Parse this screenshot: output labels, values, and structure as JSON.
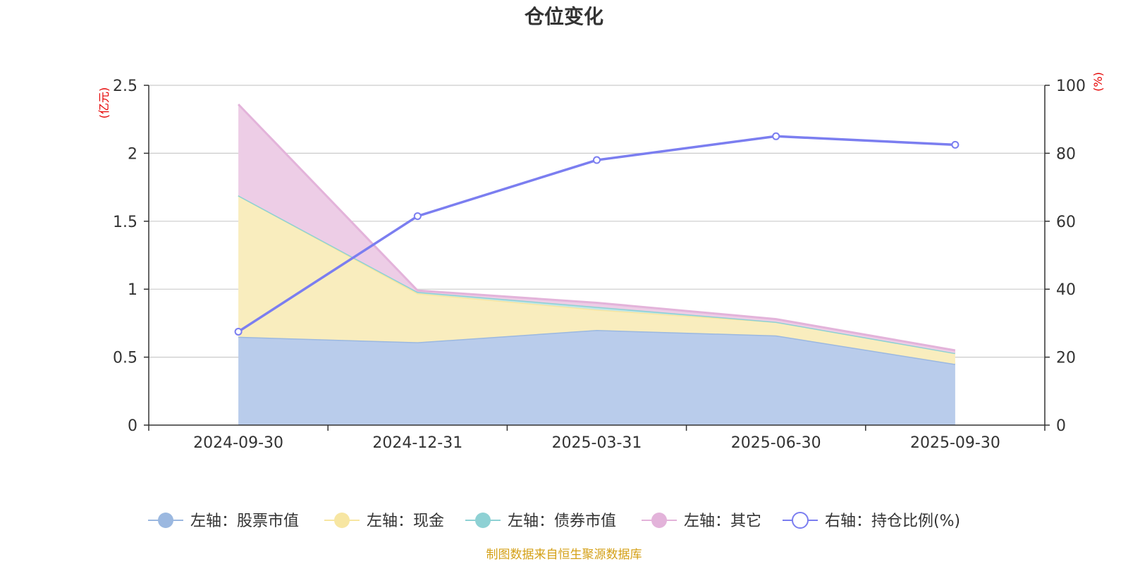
{
  "chart_data": {
    "type": "area",
    "title": "仓位变化",
    "x": [
      "2024-09-30",
      "2024-12-31",
      "2025-03-31",
      "2025-06-30",
      "2025-09-30"
    ],
    "left_axis": {
      "unit": "(亿元)",
      "ylim": [
        0,
        2.5
      ],
      "ticks": [
        "0",
        "0.5",
        "1",
        "1.5",
        "2",
        "2.5"
      ]
    },
    "right_axis": {
      "unit": "(%)",
      "ylim": [
        0,
        100
      ],
      "ticks": [
        "0",
        "20",
        "40",
        "60",
        "80",
        "100"
      ]
    },
    "series": [
      {
        "name": "左轴：股票市值",
        "axis": "left",
        "kind": "stacked-area",
        "color": "#9bb8e0",
        "fill": "#b9cceb",
        "values": [
          0.65,
          0.61,
          0.7,
          0.66,
          0.45
        ]
      },
      {
        "name": "左轴：现金",
        "axis": "left",
        "kind": "stacked-area",
        "color": "#f7e6a2",
        "fill": "#f9edbe",
        "values": [
          1.04,
          0.36,
          0.15,
          0.1,
          0.08
        ]
      },
      {
        "name": "左轴：债券市值",
        "axis": "left",
        "kind": "stacked-area",
        "color": "#8ed1d4",
        "fill": "#bfe6e7",
        "values": [
          0,
          0.01,
          0.02,
          0,
          0
        ]
      },
      {
        "name": "左轴：其它",
        "axis": "left",
        "kind": "stacked-area",
        "color": "#e3b3da",
        "fill": "#edcde6",
        "values": [
          0.67,
          0.01,
          0.03,
          0.02,
          0.02
        ]
      },
      {
        "name": "右轴：持仓比例(%)",
        "axis": "right",
        "kind": "line",
        "color": "#7b7ef0",
        "values": [
          27.5,
          61.5,
          78.0,
          85.0,
          82.5
        ]
      }
    ],
    "grid": true,
    "legend": "bottom"
  },
  "source_note": "制图数据来自恒生聚源数据库"
}
